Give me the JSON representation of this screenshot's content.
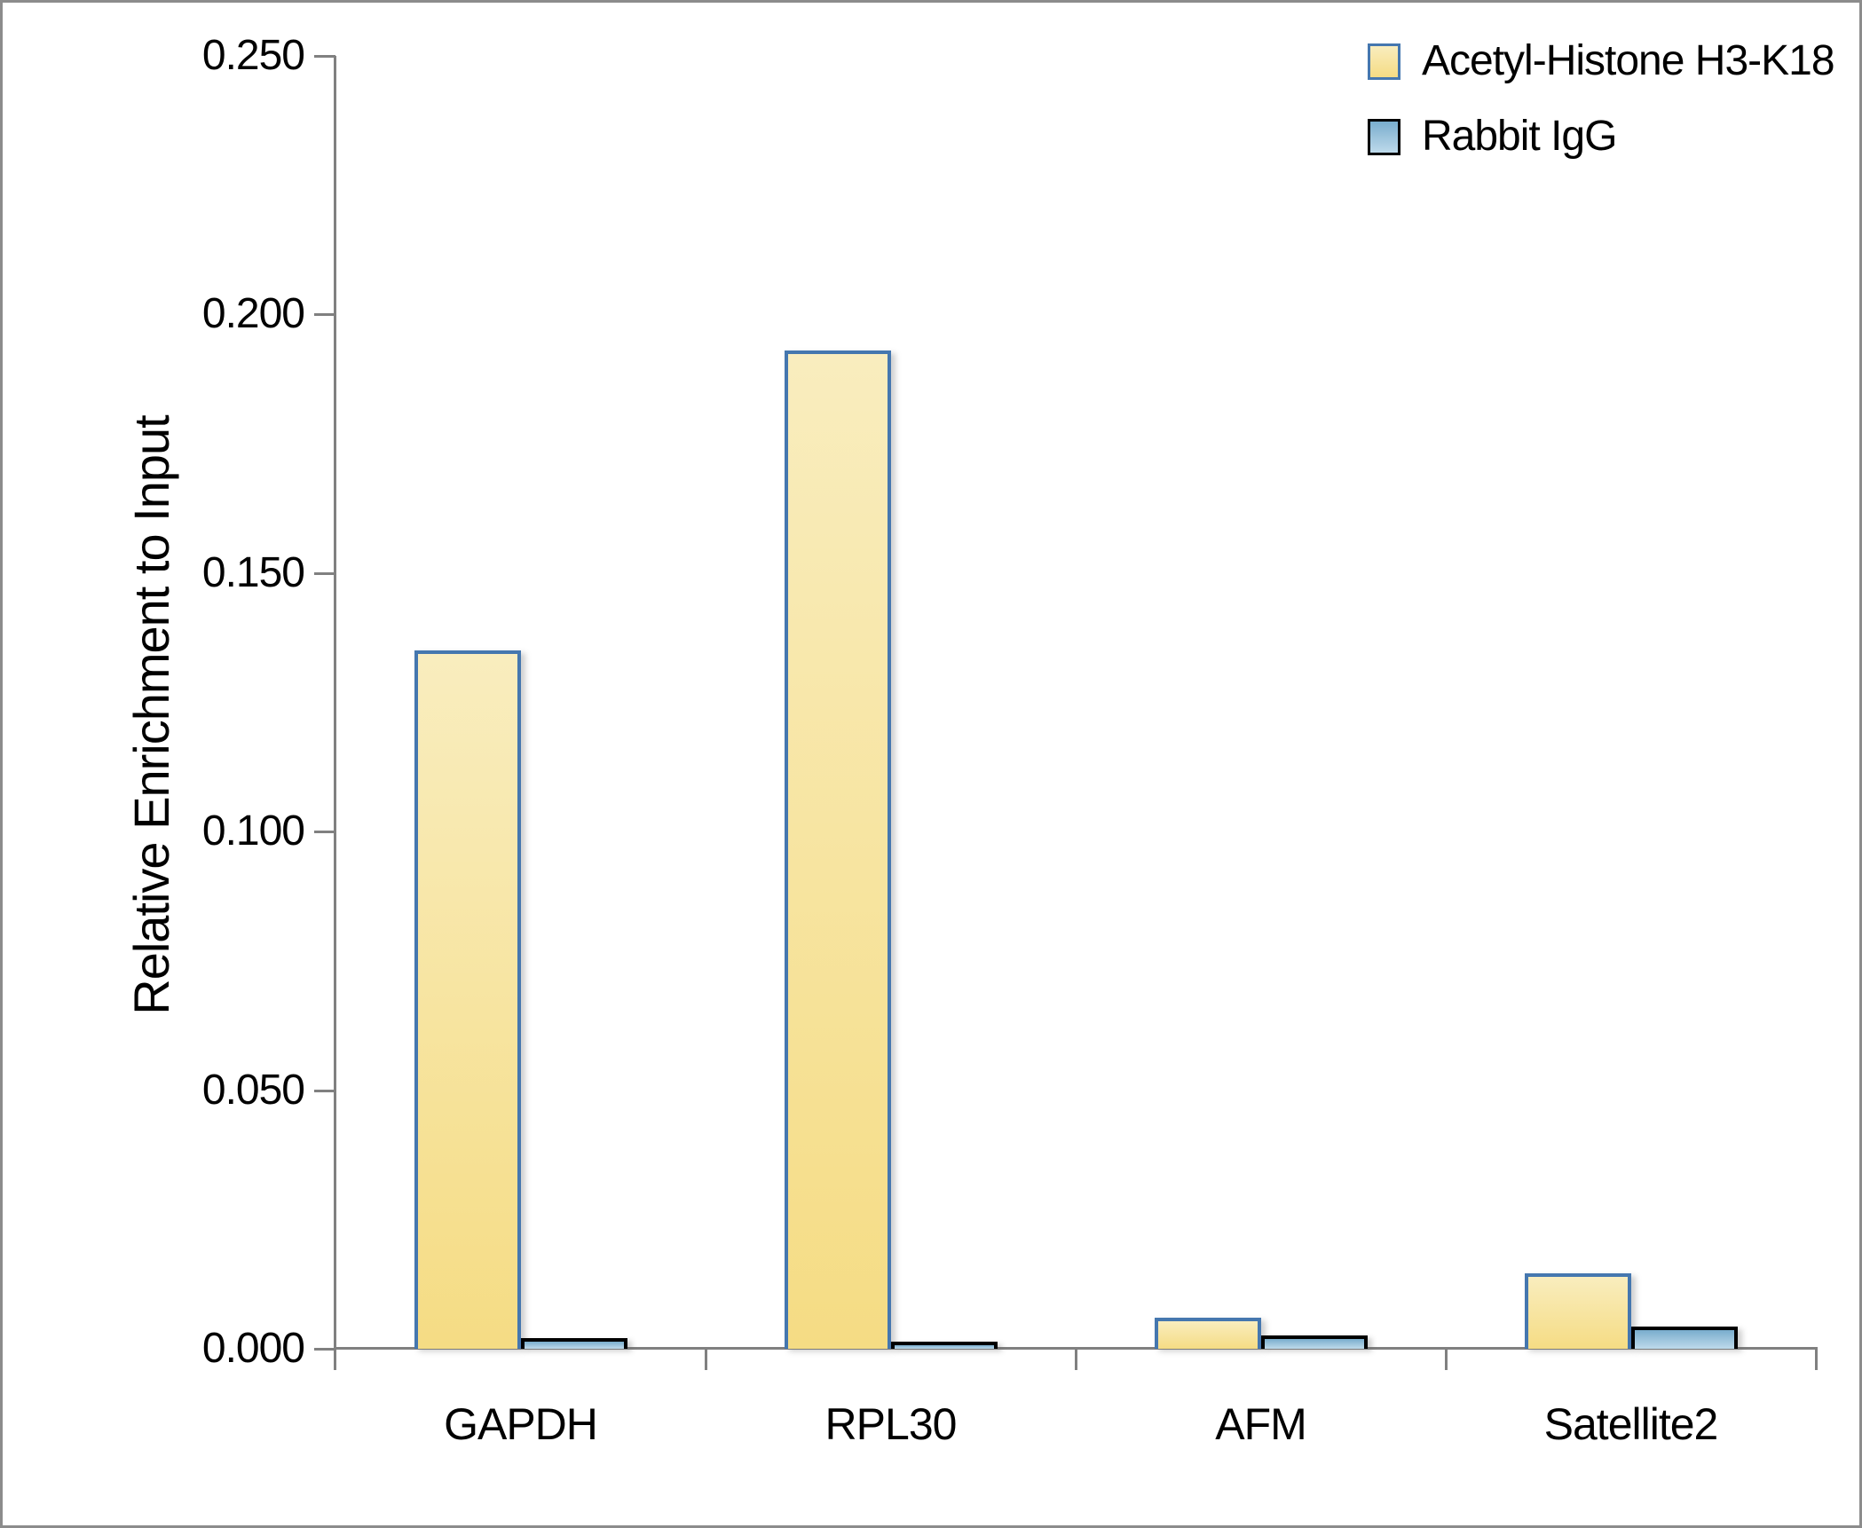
{
  "figure": {
    "background": "#FFFFFF",
    "frame_border_color": "#8C8C8C"
  },
  "chart_data": {
    "type": "bar",
    "title": "",
    "xlabel": "",
    "ylabel": "Relative Enrichment to Input",
    "categories": [
      "GAPDH",
      "RPL30",
      "AFM",
      "Satellite2"
    ],
    "series": [
      {
        "name": "Acetyl-Histone H3-K18",
        "values": [
          0.135,
          0.193,
          0.006,
          0.0145
        ],
        "fill_top": "#F9EDBE",
        "fill_bottom": "#F5DC84",
        "border": "#4577AF"
      },
      {
        "name": "Rabbit IgG",
        "values": [
          0.002,
          0.0013,
          0.0026,
          0.0043
        ],
        "fill_top": "#79ADCD",
        "fill_bottom": "#BEDAEB",
        "border": "#000000"
      }
    ],
    "ylim": [
      0,
      0.25
    ],
    "ytick_step": 0.05,
    "ytick_labels": [
      "0.000",
      "0.050",
      "0.100",
      "0.150",
      "0.200",
      "0.250"
    ],
    "grid": false,
    "legend_position": "top-right",
    "axis_color": "#808080",
    "text_color": "#000000"
  }
}
